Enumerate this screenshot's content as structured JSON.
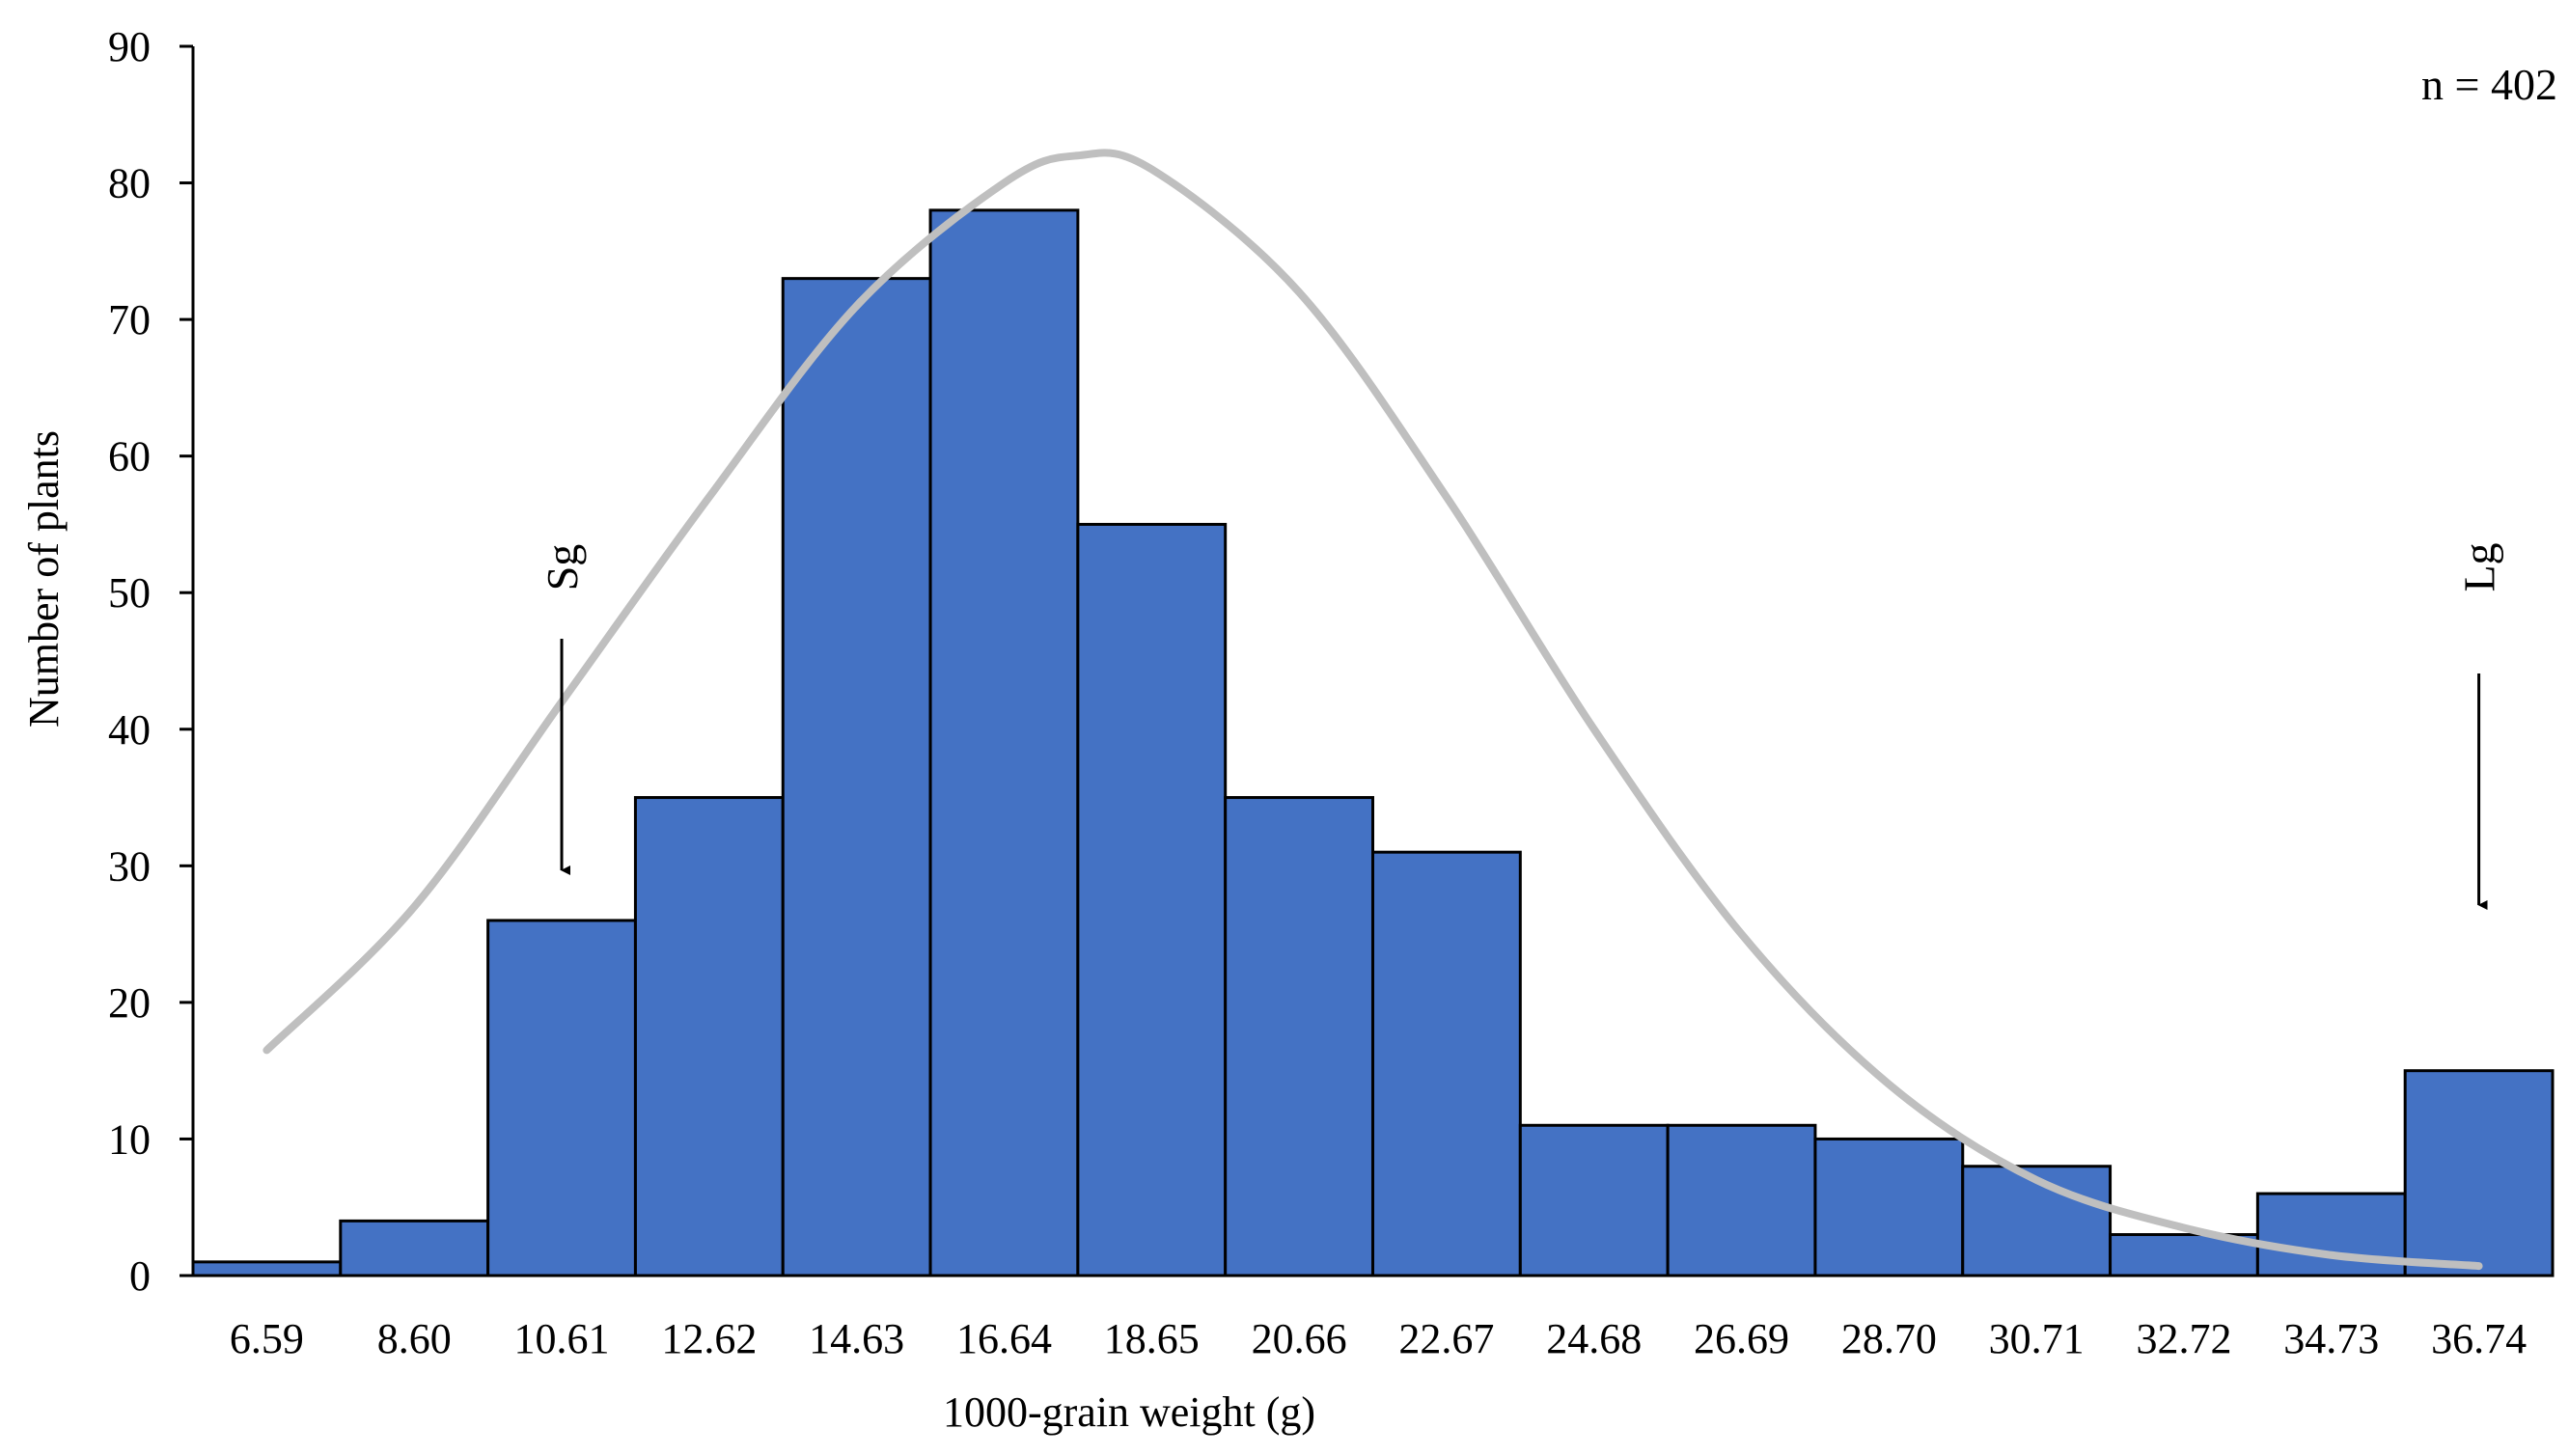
{
  "chart_data": {
    "type": "bar",
    "categories": [
      "6.59",
      "8.60",
      "10.61",
      "12.62",
      "14.63",
      "16.64",
      "18.65",
      "20.66",
      "22.67",
      "24.68",
      "26.69",
      "28.70",
      "30.71",
      "32.72",
      "34.73",
      "36.74"
    ],
    "values": [
      1,
      4,
      26,
      35,
      73,
      78,
      55,
      35,
      31,
      11,
      11,
      10,
      8,
      3,
      6,
      15
    ],
    "xlabel": "1000-grain weight (g)",
    "ylabel": "Number of plants",
    "ylim": [
      0,
      90
    ],
    "yticks": [
      0,
      10,
      20,
      30,
      40,
      50,
      60,
      70,
      80,
      90
    ],
    "bar_color": "#4472C4",
    "bar_edge_color": "#000000",
    "curve_color": "#BFBFBF",
    "curve": {
      "type": "normal-fit",
      "x": [
        6.59,
        8.6,
        10.61,
        12.62,
        14.63,
        16.64,
        17.64,
        18.65,
        20.66,
        22.67,
        24.68,
        26.69,
        28.7,
        30.71,
        32.72,
        34.73,
        36.74
      ],
      "y": [
        16.5,
        27,
        42,
        57,
        71,
        80,
        82,
        81,
        72,
        57,
        40,
        25,
        14,
        7,
        3.5,
        1.5,
        0.7
      ]
    },
    "annotations": [
      {
        "label": "n = 402"
      },
      {
        "label": "Sg",
        "category": "10.61"
      },
      {
        "label": "Lg",
        "category": "36.74"
      }
    ],
    "grid": false,
    "legend": "none"
  }
}
